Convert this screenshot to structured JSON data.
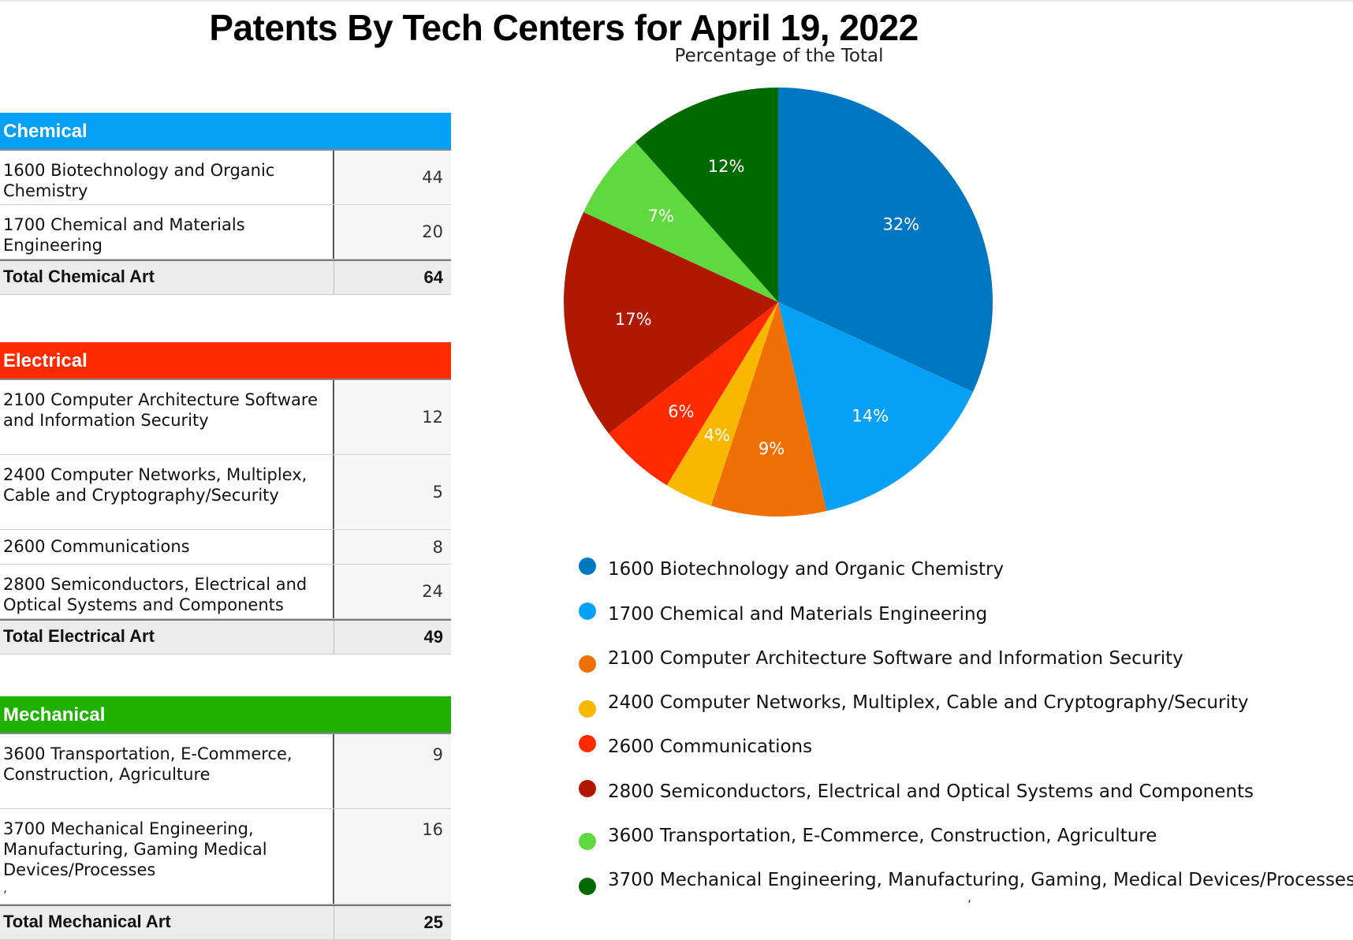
{
  "title": "Patents By Tech Centers for April 19, 2022",
  "subtitle": "Percentage of the Total",
  "colors": {
    "chemical_header": "#06a0f5",
    "electrical_header": "#ff2a00",
    "mechanical_header": "#20b000"
  },
  "tables": {
    "chemical": {
      "header": "Chemical",
      "rows": [
        {
          "name": "1600 Biotechnology and Organic Chemistry",
          "value": "44"
        },
        {
          "name": "1700 Chemical and Materials Engineering",
          "value": "20"
        }
      ],
      "total_label": "Total Chemical Art",
      "total_value": "64"
    },
    "electrical": {
      "header": "Electrical",
      "rows": [
        {
          "name": "2100 Computer Architecture Software and Information Security",
          "value": "12"
        },
        {
          "name": "2400 Computer Networks, Multiplex, Cable and Cryptography/Security",
          "value": "5"
        },
        {
          "name": "2600 Communications",
          "value": "8"
        },
        {
          "name": "2800 Semiconductors, Electrical and Optical Systems and Components",
          "value": "24"
        }
      ],
      "total_label": "Total Electrical Art",
      "total_value": "49"
    },
    "mechanical": {
      "header": "Mechanical",
      "rows": [
        {
          "name": "3600 Transportation, E-Commerce, Construction, Agriculture",
          "value": "9"
        },
        {
          "name": "3700 Mechanical Engineering, Manufacturing, Gaming Medical Devices/Processes",
          "value": "16",
          "extra": ","
        }
      ],
      "total_label": "Total Mechanical Art",
      "total_value": "25"
    }
  },
  "stray_mark": ",",
  "chart_data": {
    "type": "pie",
    "title": "Patents By Tech Centers for April 19, 2022",
    "subtitle": "Percentage of the Total",
    "slices": [
      {
        "label": "1600 Biotechnology and Organic Chemistry",
        "value": 44,
        "percent_label": "32%",
        "color": "#0077c0"
      },
      {
        "label": "1700 Chemical and Materials Engineering",
        "value": 20,
        "percent_label": "14%",
        "color": "#06a0f5"
      },
      {
        "label": "2100 Computer Architecture Software and Information Security",
        "value": 12,
        "percent_label": "9%",
        "color": "#f07008"
      },
      {
        "label": "2400 Computer Networks, Multiplex, Cable and Cryptography/Security",
        "value": 5,
        "percent_label": "4%",
        "color": "#f8b800"
      },
      {
        "label": "2600 Communications",
        "value": 8,
        "percent_label": "6%",
        "color": "#ff2a00"
      },
      {
        "label": "2800 Semiconductors, Electrical and Optical Systems and Components",
        "value": 24,
        "percent_label": "17%",
        "color": "#b01800"
      },
      {
        "label": "3600 Transportation, E-Commerce, Construction, Agriculture",
        "value": 9,
        "percent_label": "7%",
        "color": "#60d840"
      },
      {
        "label": "3700 Mechanical Engineering, Manufacturing, Gaming, Medical Devices/Processes",
        "value": 16,
        "percent_label": "12%",
        "color": "#006a00"
      }
    ],
    "legend_position": "bottom"
  }
}
